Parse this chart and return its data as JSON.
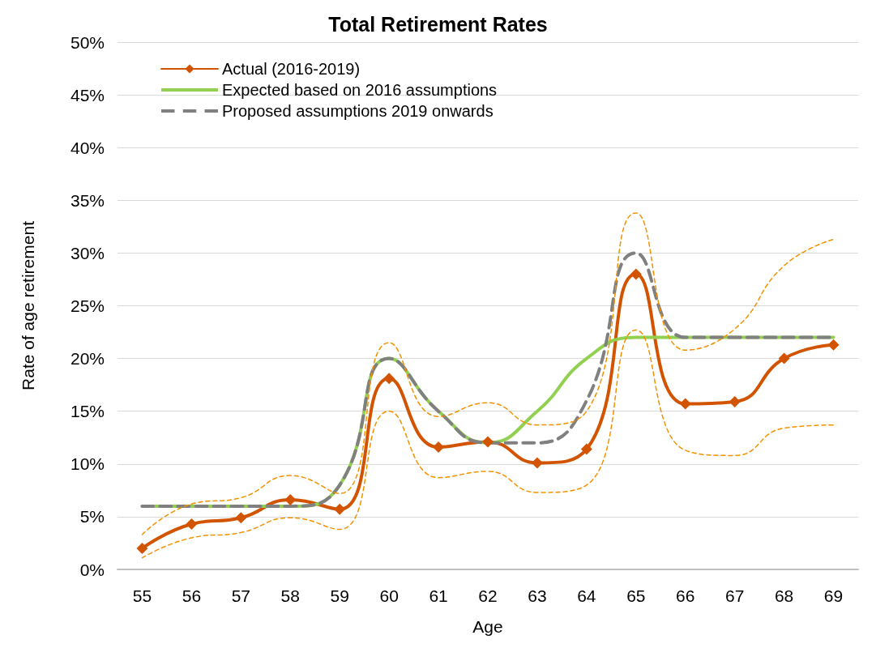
{
  "chart_data": {
    "type": "line",
    "title": "Total Retirement Rates",
    "xlabel": "Age",
    "ylabel": "Rate of age retirement",
    "categories": [
      "55",
      "56",
      "57",
      "58",
      "59",
      "60",
      "61",
      "62",
      "63",
      "64",
      "65",
      "66",
      "67",
      "68",
      "69"
    ],
    "series": [
      {
        "name": "Actual (2016-2019)",
        "color": "#d35400",
        "marker": "diamond",
        "line_style": "solid",
        "values": [
          2,
          4.3,
          4.9,
          6.6,
          5.7,
          18.1,
          11.6,
          12.1,
          10.1,
          11.4,
          28,
          15.7,
          15.9,
          20,
          21.3
        ]
      },
      {
        "name": "Expected based on 2016 assumptions",
        "color": "#92d050",
        "marker": "none",
        "line_style": "solid",
        "values": [
          6,
          6,
          6,
          6,
          8,
          20,
          15,
          12,
          15,
          20,
          22,
          22,
          22,
          22,
          22
        ]
      },
      {
        "name": "Proposed assumptions 2019 onwards",
        "color": "#808080",
        "marker": "none",
        "line_style": "dashed",
        "values": [
          6,
          6,
          6,
          6,
          8,
          20,
          15,
          12,
          12,
          16,
          30,
          22,
          22,
          22,
          22
        ]
      },
      {
        "color": "#f39200",
        "marker": "none",
        "line_style": "dashed",
        "values": [
          3.3,
          6.2,
          6.8,
          8.9,
          7.2,
          21.5,
          14.5,
          15.8,
          13.7,
          15,
          33.8,
          20.8,
          22.8,
          28.8,
          31.3
        ]
      },
      {
        "color": "#f39200",
        "marker": "none",
        "line_style": "dashed",
        "values": [
          1.1,
          3,
          3.5,
          4.9,
          3.8,
          15,
          8.7,
          9.3,
          7.3,
          8,
          22.7,
          11.3,
          10.8,
          13.4,
          13.7
        ]
      }
    ],
    "ylim": [
      0,
      50
    ],
    "yticks": [
      {
        "value": 0,
        "label": "0%"
      },
      {
        "value": 5,
        "label": "5%"
      },
      {
        "value": 10,
        "label": "10%"
      },
      {
        "value": 15,
        "label": "15%"
      },
      {
        "value": 20,
        "label": "20%"
      },
      {
        "value": 25,
        "label": "25%"
      },
      {
        "value": 30,
        "label": "30%"
      },
      {
        "value": 35,
        "label": "35%"
      },
      {
        "value": 40,
        "label": "40%"
      },
      {
        "value": 45,
        "label": "45%"
      },
      {
        "value": 50,
        "label": "50%"
      }
    ],
    "grid": "y",
    "legend": "top left"
  }
}
